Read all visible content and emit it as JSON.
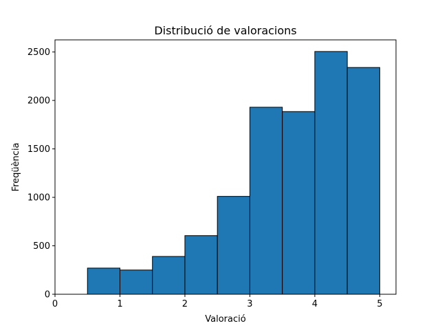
{
  "chart_data": {
    "type": "bar",
    "title": "Distribució de valoracions",
    "xlabel": "Valoració",
    "ylabel": "Freqüència",
    "xlim": [
      0,
      5.25
    ],
    "ylim": [
      0,
      2625
    ],
    "xticks": [
      0,
      1,
      2,
      3,
      4,
      5
    ],
    "yticks": [
      0,
      500,
      1000,
      1500,
      2000,
      2500
    ],
    "grid": false,
    "bins": [
      {
        "start": 0.5,
        "end": 1.0,
        "value": 270
      },
      {
        "start": 1.0,
        "end": 1.5,
        "value": 250
      },
      {
        "start": 1.5,
        "end": 2.0,
        "value": 390
      },
      {
        "start": 2.0,
        "end": 2.5,
        "value": 605
      },
      {
        "start": 2.5,
        "end": 3.0,
        "value": 1010
      },
      {
        "start": 3.0,
        "end": 3.5,
        "value": 1930
      },
      {
        "start": 3.5,
        "end": 4.0,
        "value": 1885
      },
      {
        "start": 4.0,
        "end": 4.5,
        "value": 2505
      },
      {
        "start": 4.5,
        "end": 5.0,
        "value": 2340
      }
    ],
    "bar_color": "#1f77b4",
    "edge_color": "#000000"
  }
}
